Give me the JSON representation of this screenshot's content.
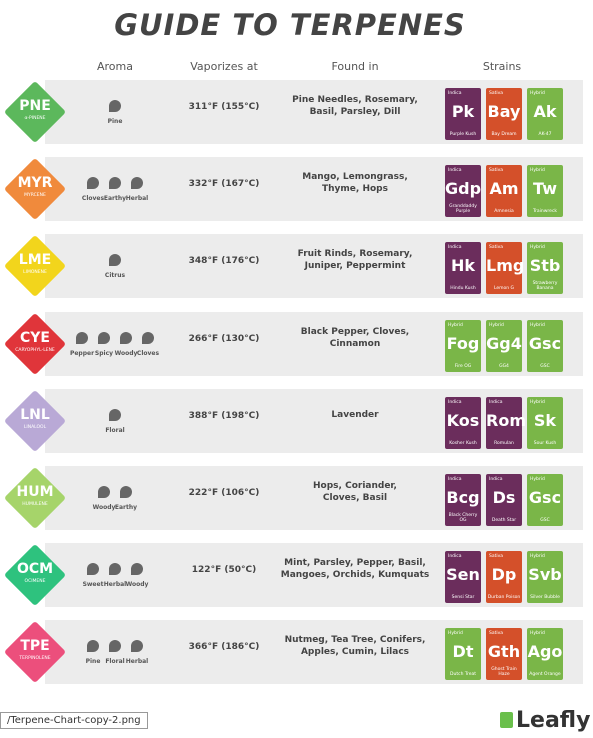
{
  "header": {
    "title": "GUIDE TO TERPENES"
  },
  "columns": {
    "aroma": "Aroma",
    "vapor": "Vaporizes at",
    "found": "Found in",
    "strains": "Strains"
  },
  "terpenes": [
    {
      "code": "PNE",
      "name": "α-PINENE",
      "color": "#5cb85c",
      "aromas": [
        "Pine"
      ],
      "vapor": "311°F (155°C)",
      "found_in": [
        "Pine Needles, Rosemary,",
        "Basil, Parsley, Dill"
      ],
      "strains": [
        {
          "type": "Indica",
          "symbol": "Pk",
          "name": "Purple Kush"
        },
        {
          "type": "Sativa",
          "symbol": "Bay",
          "name": "Bay Dream"
        },
        {
          "type": "Hybrid",
          "symbol": "Ak",
          "name": "AK-47"
        }
      ]
    },
    {
      "code": "MYR",
      "name": "MYRCENE",
      "color": "#f08a3c",
      "aromas": [
        "Cloves",
        "Earthy",
        "Herbal"
      ],
      "vapor": "332°F (167°C)",
      "found_in": [
        "Mango, Lemongrass,",
        "Thyme, Hops"
      ],
      "strains": [
        {
          "type": "Indica",
          "symbol": "Gdp",
          "name": "Granddaddy Purple"
        },
        {
          "type": "Sativa",
          "symbol": "Am",
          "name": "Amnesia"
        },
        {
          "type": "Hybrid",
          "symbol": "Tw",
          "name": "Trainwreck"
        }
      ]
    },
    {
      "code": "LME",
      "name": "LIMONENE",
      "color": "#f2d51c",
      "aromas": [
        "Citrus"
      ],
      "vapor": "348°F (176°C)",
      "found_in": [
        "Fruit Rinds, Rosemary,",
        "Juniper, Peppermint"
      ],
      "strains": [
        {
          "type": "Indica",
          "symbol": "Hk",
          "name": "Hindu Kush"
        },
        {
          "type": "Sativa",
          "symbol": "Lmg",
          "name": "Lemon G"
        },
        {
          "type": "Hybrid",
          "symbol": "Stb",
          "name": "Strawberry Banana"
        }
      ]
    },
    {
      "code": "CYE",
      "name": "CARYOPHYL-LENE",
      "color": "#e0353a",
      "aromas": [
        "Pepper",
        "Spicy",
        "Woody",
        "Cloves"
      ],
      "vapor": "266°F (130°C)",
      "found_in": [
        "Black Pepper, Cloves,",
        "Cinnamon"
      ],
      "strains": [
        {
          "type": "Hybrid",
          "symbol": "Fog",
          "name": "Fire OG"
        },
        {
          "type": "Hybrid",
          "symbol": "Gg4",
          "name": "GG4"
        },
        {
          "type": "Hybrid",
          "symbol": "Gsc",
          "name": "GSC"
        }
      ]
    },
    {
      "code": "LNL",
      "name": "LINALOOL",
      "color": "#b9a9d6",
      "aromas": [
        "Floral"
      ],
      "vapor": "388°F (198°C)",
      "found_in": [
        "Lavender"
      ],
      "strains": [
        {
          "type": "Indica",
          "symbol": "Kos",
          "name": "Kosher Kush"
        },
        {
          "type": "Indica",
          "symbol": "Rom",
          "name": "Romulan"
        },
        {
          "type": "Hybrid",
          "symbol": "Sk",
          "name": "Sour Kush"
        }
      ]
    },
    {
      "code": "HUM",
      "name": "HUMULENE",
      "color": "#a6d46a",
      "aromas": [
        "Woody",
        "Earthy"
      ],
      "vapor": "222°F (106°C)",
      "found_in": [
        "Hops, Coriander,",
        "Cloves, Basil"
      ],
      "strains": [
        {
          "type": "Indica",
          "symbol": "Bcg",
          "name": "Black Cherry OG"
        },
        {
          "type": "Indica",
          "symbol": "Ds",
          "name": "Death Star"
        },
        {
          "type": "Hybrid",
          "symbol": "Gsc",
          "name": "GSC"
        }
      ]
    },
    {
      "code": "OCM",
      "name": "OCIMENE",
      "color": "#2ec27e",
      "aromas": [
        "Sweet",
        "Herbal",
        "Woody"
      ],
      "vapor": "122°F (50°C)",
      "found_in": [
        "Mint, Parsley, Pepper, Basil,",
        "Mangoes, Orchids, Kumquats"
      ],
      "strains": [
        {
          "type": "Indica",
          "symbol": "Sen",
          "name": "Sensi Star"
        },
        {
          "type": "Sativa",
          "symbol": "Dp",
          "name": "Durban Poison"
        },
        {
          "type": "Hybrid",
          "symbol": "Svb",
          "name": "Silver Bubble"
        }
      ]
    },
    {
      "code": "TPE",
      "name": "TERPINOLENE",
      "color": "#ec4f7c",
      "aromas": [
        "Pine",
        "Floral",
        "Herbal"
      ],
      "vapor": "366°F (186°C)",
      "found_in": [
        "Nutmeg, Tea Tree, Conifers,",
        "Apples, Cumin, Lilacs"
      ],
      "strains": [
        {
          "type": "Hybrid",
          "symbol": "Dt",
          "name": "Dutch Treat"
        },
        {
          "type": "Sativa",
          "symbol": "Gth",
          "name": "Ghost Train Haze"
        },
        {
          "type": "Hybrid",
          "symbol": "Ago",
          "name": "Agent Orange"
        }
      ]
    }
  ],
  "footer": {
    "file": "/Terpene-Chart-copy-2.png",
    "brand": "Leafly"
  }
}
